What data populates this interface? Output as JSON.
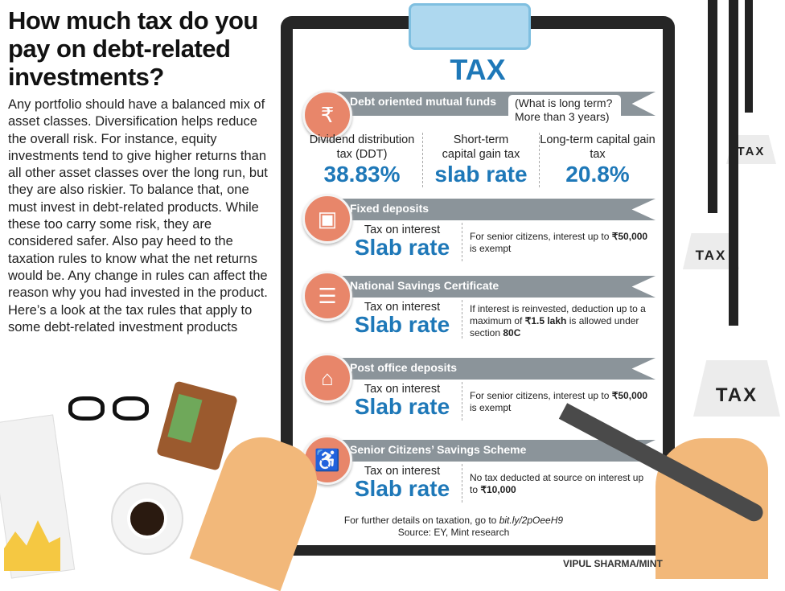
{
  "title": "How much tax do you pay on debt-related investments?",
  "intro": "Any portfolio should have a balanced mix of asset classes. Diversification helps reduce the overall risk. For instance, equity investments tend to give higher returns than all other asset classes over the long run, but they are also riskier. To balance that, one must invest in debt-related products. While these too carry some risk, they are considered safer. Also pay heed to the taxation rules to know what the net returns would be. Any change in rules can affect the reason why you had invested in the product. Here’s a look at the tax rules that apply to some debt-related investment products",
  "board_title": "TAX",
  "mutual_funds": {
    "heading": "Debt oriented mutual funds",
    "callout": "(What is long term? More than 3 years)",
    "columns": [
      {
        "label": "Dividend distribution tax (DDT)",
        "value": "38.83%"
      },
      {
        "label": "Short-term capital gain tax",
        "value": "slab rate"
      },
      {
        "label": "Long-term capital gain tax",
        "value": "20.8%"
      }
    ]
  },
  "sections": [
    {
      "heading": "Fixed deposits",
      "label": "Tax on interest",
      "value": "Slab rate",
      "note_pre": "For senior citizens, interest up to ",
      "note_bold": "₹50,000",
      "note_post": " is exempt",
      "icon": "safe-icon"
    },
    {
      "heading": "National Savings Certificate",
      "label": "Tax on interest",
      "value": "Slab rate",
      "note_pre": "If interest is reinvested, deduction up to a maximum of ",
      "note_bold": "₹1.5 lakh",
      "note_post": " is allowed under section ",
      "note_bold2": "80C",
      "icon": "certificate-icon"
    },
    {
      "heading": "Post office deposits",
      "label": "Tax on interest",
      "value": "Slab rate",
      "note_pre": "For senior citizens, interest up to ",
      "note_bold": "₹50,000",
      "note_post": " is exempt",
      "icon": "post-box-icon"
    },
    {
      "heading": "Senior Citizens’ Savings Scheme",
      "label": "Tax on interest",
      "value": "Slab rate",
      "note_pre": "No tax deducted at source on interest up to ",
      "note_bold": "₹10,000",
      "note_post": "",
      "icon": "elderly-person-icon"
    }
  ],
  "footer": {
    "details_pre": "For further details on taxation, go to ",
    "link": "bit.ly/2pOeeH9",
    "source": "Source: EY, Mint research"
  },
  "weights": [
    "TAX",
    "TAX",
    "TAX"
  ],
  "credit": "VIPUL SHARMA/MINT",
  "colors": {
    "accent": "#1e78b8",
    "banner": "#8b949a",
    "icon_circle": "#e8866a"
  }
}
